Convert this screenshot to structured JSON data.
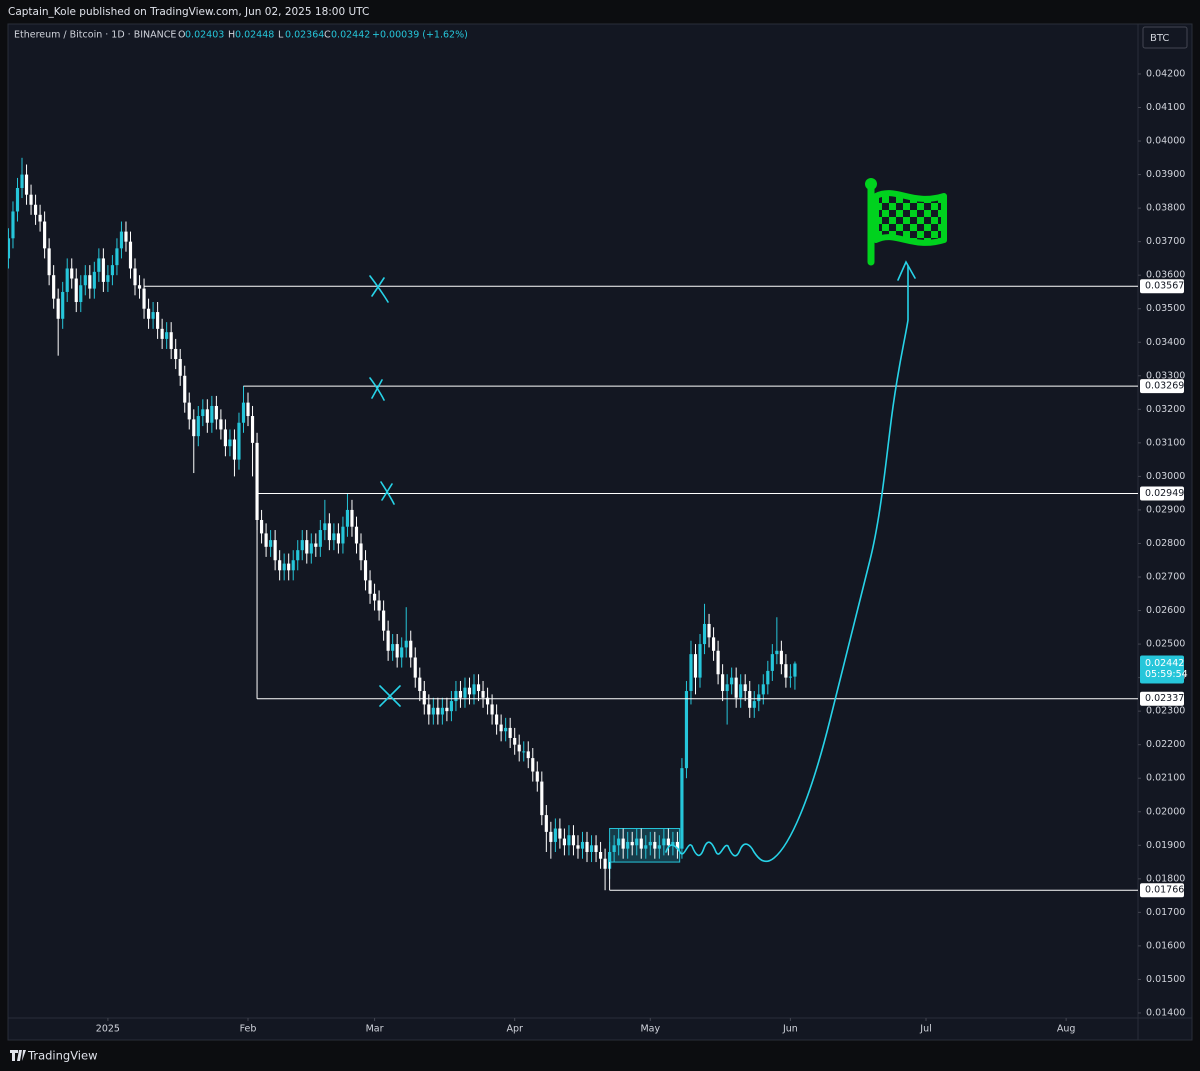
{
  "header": {
    "publisher": "Captain_Kole published on TradingView.com, Jun 02, 2025 18:00 UTC",
    "logo": "TradingView"
  },
  "chart_data": {
    "type": "candlestick",
    "title": "Ethereum / Bitcoin · 1D · BINANCE",
    "ohlc_labels": [
      "O",
      "H",
      "L",
      "C"
    ],
    "change": "+0.00039 (+1.62%)",
    "currency": "BTC",
    "countdown": "05:59:54",
    "up_color": "#26c6da",
    "down_color": "#ffffff",
    "level_color": "#ffffff",
    "box_color": "#26c6da",
    "grid": false,
    "xlim": [
      -22.1,
      227.9
    ],
    "xticks": [
      {
        "value": 0,
        "label": "2025"
      },
      {
        "value": 31,
        "label": "Feb"
      },
      {
        "value": 59,
        "label": "Mar"
      },
      {
        "value": 90,
        "label": "Apr"
      },
      {
        "value": 120,
        "label": "May"
      },
      {
        "value": 151,
        "label": "Jun"
      },
      {
        "value": 181,
        "label": "Jul"
      },
      {
        "value": 212,
        "label": "Aug"
      }
    ],
    "ylim": [
      0.01385,
      0.04349
    ],
    "yticks": [
      {
        "value": 0.014,
        "label": "0.01400"
      },
      {
        "value": 0.015,
        "label": "0.01500"
      },
      {
        "value": 0.016,
        "label": "0.01600"
      },
      {
        "value": 0.017,
        "label": "0.01700"
      },
      {
        "value": 0.018,
        "label": "0.01800"
      },
      {
        "value": 0.019,
        "label": "0.01900"
      },
      {
        "value": 0.02,
        "label": "0.02000"
      },
      {
        "value": 0.021,
        "label": "0.02100"
      },
      {
        "value": 0.022,
        "label": "0.02200"
      },
      {
        "value": 0.023,
        "label": "0.02300"
      },
      {
        "value": 0.024,
        "label": "0.02400"
      },
      {
        "value": 0.025,
        "label": "0.02500"
      },
      {
        "value": 0.026,
        "label": "0.02600"
      },
      {
        "value": 0.027,
        "label": "0.02700"
      },
      {
        "value": 0.028,
        "label": "0.02800"
      },
      {
        "value": 0.029,
        "label": "0.02900"
      },
      {
        "value": 0.03,
        "label": "0.03000"
      },
      {
        "value": 0.031,
        "label": "0.03100"
      },
      {
        "value": 0.032,
        "label": "0.03200"
      },
      {
        "value": 0.033,
        "label": "0.03300"
      },
      {
        "value": 0.034,
        "label": "0.03400"
      },
      {
        "value": 0.035,
        "label": "0.03500"
      },
      {
        "value": 0.036,
        "label": "0.03600"
      },
      {
        "value": 0.037,
        "label": "0.03700"
      },
      {
        "value": 0.038,
        "label": "0.03800"
      },
      {
        "value": 0.039,
        "label": "0.03900"
      },
      {
        "value": 0.04,
        "label": "0.04000"
      },
      {
        "value": 0.041,
        "label": "0.04100"
      },
      {
        "value": 0.042,
        "label": "0.04200"
      }
    ],
    "levels": {
      "values": [
        0.03567,
        0.03269,
        0.02949,
        0.02337,
        0.01766
      ],
      "x": [
        8,
        30,
        33,
        33,
        111
      ]
    },
    "range_box": {
      "x": [
        111,
        126.5
      ],
      "y": [
        0.0185,
        0.0195
      ]
    },
    "x": [
      -22,
      -21,
      -20,
      -19,
      -18,
      -17,
      -16,
      -15,
      -14,
      -13,
      -12,
      -11,
      -10,
      -9,
      -8,
      -7,
      -6,
      -5,
      -4,
      -3,
      -2,
      -1,
      0,
      1,
      2,
      3,
      4,
      5,
      6,
      7,
      8,
      9,
      10,
      11,
      12,
      13,
      14,
      15,
      16,
      17,
      18,
      19,
      20,
      21,
      22,
      23,
      24,
      25,
      26,
      27,
      28,
      29,
      30,
      31,
      32,
      33,
      34,
      35,
      36,
      37,
      38,
      39,
      40,
      41,
      42,
      43,
      44,
      45,
      46,
      47,
      48,
      49,
      50,
      51,
      52,
      53,
      54,
      55,
      56,
      57,
      58,
      59,
      60,
      61,
      62,
      63,
      64,
      65,
      66,
      67,
      68,
      69,
      70,
      71,
      72,
      73,
      74,
      75,
      76,
      77,
      78,
      79,
      80,
      81,
      82,
      83,
      84,
      85,
      86,
      87,
      88,
      89,
      90,
      91,
      92,
      93,
      94,
      95,
      96,
      97,
      98,
      99,
      100,
      101,
      102,
      103,
      104,
      105,
      106,
      107,
      108,
      109,
      110,
      111,
      112,
      113,
      114,
      115,
      116,
      117,
      118,
      119,
      120,
      121,
      122,
      123,
      124,
      125,
      126,
      127,
      128,
      129,
      130,
      131,
      132,
      133,
      134,
      135,
      136,
      137,
      138,
      139,
      140,
      141,
      142,
      143,
      144,
      145,
      146,
      147,
      148,
      149,
      150,
      151,
      152
    ],
    "open": [
      0.0365,
      0.0371,
      0.0379,
      0.0386,
      0.039,
      0.0384,
      0.0381,
      0.0378,
      0.0376,
      0.0368,
      0.036,
      0.0353,
      0.0347,
      0.0355,
      0.0362,
      0.0359,
      0.0352,
      0.0357,
      0.036,
      0.0356,
      0.0361,
      0.0365,
      0.0358,
      0.036,
      0.0363,
      0.0368,
      0.0373,
      0.037,
      0.0362,
      0.0357,
      0.0356,
      0.035,
      0.0347,
      0.0349,
      0.0344,
      0.0341,
      0.0343,
      0.0338,
      0.0335,
      0.033,
      0.0322,
      0.0317,
      0.0312,
      0.0318,
      0.032,
      0.0316,
      0.0321,
      0.0317,
      0.0314,
      0.0309,
      0.0311,
      0.0305,
      0.0316,
      0.0322,
      0.0318,
      0.031,
      0.0287,
      0.0283,
      0.0279,
      0.0281,
      0.0275,
      0.0272,
      0.0274,
      0.0272,
      0.0275,
      0.0278,
      0.0281,
      0.0277,
      0.028,
      0.0279,
      0.0284,
      0.0286,
      0.0281,
      0.0283,
      0.028,
      0.0285,
      0.029,
      0.0285,
      0.028,
      0.0275,
      0.0269,
      0.0265,
      0.0263,
      0.026,
      0.0254,
      0.0248,
      0.025,
      0.0246,
      0.0249,
      0.0251,
      0.0246,
      0.024,
      0.0236,
      0.0232,
      0.0229,
      0.0231,
      0.0229,
      0.0231,
      0.023,
      0.0233,
      0.0236,
      0.0234,
      0.0237,
      0.0235,
      0.0238,
      0.0236,
      0.0234,
      0.0232,
      0.0229,
      0.0226,
      0.0224,
      0.0225,
      0.0222,
      0.022,
      0.0218,
      0.0218,
      0.0216,
      0.0212,
      0.0209,
      0.0199,
      0.0194,
      0.0191,
      0.0195,
      0.0192,
      0.019,
      0.0193,
      0.019,
      0.0189,
      0.0191,
      0.0188,
      0.019,
      0.0188,
      0.0186,
      0.0183,
      0.0188,
      0.019,
      0.0192,
      0.0189,
      0.0191,
      0.019,
      0.0192,
      0.0189,
      0.019,
      0.0191,
      0.0189,
      0.019,
      0.0192,
      0.019,
      0.0191,
      0.0189,
      0.0213,
      0.0236,
      0.0247,
      0.024,
      0.025,
      0.0256,
      0.0252,
      0.0248,
      0.0241,
      0.0236,
      0.0238,
      0.024,
      0.0234,
      0.0238,
      0.0236,
      0.0231,
      0.0233,
      0.0235,
      0.0238,
      0.0242,
      0.0247,
      0.0248,
      0.0244,
      0.024,
      0.02403
    ],
    "high": [
      0.0374,
      0.0382,
      0.0389,
      0.0395,
      0.0393,
      0.0387,
      0.0384,
      0.0381,
      0.0379,
      0.0371,
      0.0363,
      0.0356,
      0.0358,
      0.0365,
      0.0365,
      0.0362,
      0.036,
      0.0363,
      0.0363,
      0.0364,
      0.0368,
      0.0368,
      0.0363,
      0.0366,
      0.0371,
      0.0376,
      0.0376,
      0.0373,
      0.0365,
      0.036,
      0.0359,
      0.0353,
      0.0352,
      0.0352,
      0.0347,
      0.0346,
      0.0346,
      0.0341,
      0.0338,
      0.0333,
      0.0325,
      0.032,
      0.0321,
      0.0323,
      0.0323,
      0.0324,
      0.0324,
      0.032,
      0.0317,
      0.0314,
      0.0314,
      0.0319,
      0.0327,
      0.0325,
      0.0321,
      0.0313,
      0.029,
      0.0286,
      0.0284,
      0.0284,
      0.0278,
      0.0277,
      0.0277,
      0.0278,
      0.0281,
      0.0284,
      0.0284,
      0.0283,
      0.0283,
      0.0287,
      0.0293,
      0.0289,
      0.0286,
      0.0286,
      0.0288,
      0.0295,
      0.0293,
      0.0288,
      0.0283,
      0.0278,
      0.0272,
      0.0268,
      0.0266,
      0.0263,
      0.0257,
      0.0253,
      0.0253,
      0.0252,
      0.0261,
      0.0254,
      0.0249,
      0.0243,
      0.0239,
      0.0235,
      0.0234,
      0.0234,
      0.0234,
      0.0234,
      0.0236,
      0.0239,
      0.0239,
      0.024,
      0.024,
      0.0241,
      0.0241,
      0.0239,
      0.0237,
      0.0235,
      0.0232,
      0.0229,
      0.0228,
      0.0228,
      0.0225,
      0.0223,
      0.0221,
      0.0221,
      0.0219,
      0.0215,
      0.0212,
      0.0202,
      0.0197,
      0.0198,
      0.0198,
      0.0195,
      0.0196,
      0.0196,
      0.0193,
      0.0194,
      0.0194,
      0.0193,
      0.0193,
      0.0191,
      0.0189,
      0.0191,
      0.0193,
      0.0195,
      0.0195,
      0.0194,
      0.0194,
      0.0195,
      0.0195,
      0.0193,
      0.0194,
      0.0194,
      0.0193,
      0.0195,
      0.0195,
      0.0194,
      0.0194,
      0.0216,
      0.0239,
      0.0251,
      0.025,
      0.0253,
      0.0262,
      0.0259,
      0.0255,
      0.0251,
      0.0244,
      0.0241,
      0.0243,
      0.0243,
      0.0241,
      0.0241,
      0.0239,
      0.0236,
      0.0238,
      0.0241,
      0.0245,
      0.025,
      0.0258,
      0.0251,
      0.0247,
      0.0244,
      0.02448
    ],
    "low": [
      0.0362,
      0.0368,
      0.0376,
      0.0383,
      0.0381,
      0.0378,
      0.0375,
      0.0373,
      0.0365,
      0.0357,
      0.035,
      0.0336,
      0.0344,
      0.0352,
      0.0356,
      0.0349,
      0.0349,
      0.0354,
      0.0353,
      0.0353,
      0.0358,
      0.0355,
      0.0355,
      0.0357,
      0.036,
      0.0365,
      0.0367,
      0.0359,
      0.0354,
      0.0353,
      0.0347,
      0.0344,
      0.0344,
      0.0341,
      0.0338,
      0.0338,
      0.0335,
      0.0332,
      0.0327,
      0.0319,
      0.0314,
      0.0301,
      0.0309,
      0.0315,
      0.0313,
      0.0313,
      0.0314,
      0.0311,
      0.0306,
      0.0306,
      0.03,
      0.0302,
      0.0313,
      0.0315,
      0.03,
      0.0284,
      0.028,
      0.0276,
      0.0276,
      0.0272,
      0.0269,
      0.0269,
      0.0269,
      0.0269,
      0.0272,
      0.0275,
      0.0274,
      0.0274,
      0.0276,
      0.0276,
      0.0281,
      0.0278,
      0.0278,
      0.0277,
      0.0277,
      0.0282,
      0.0282,
      0.0277,
      0.0272,
      0.0266,
      0.0262,
      0.026,
      0.0257,
      0.0251,
      0.0245,
      0.0245,
      0.0243,
      0.0243,
      0.0246,
      0.0243,
      0.0237,
      0.0233,
      0.0229,
      0.0226,
      0.0226,
      0.0226,
      0.0226,
      0.0227,
      0.0227,
      0.023,
      0.0231,
      0.0231,
      0.0232,
      0.0232,
      0.0233,
      0.0231,
      0.0229,
      0.0226,
      0.0223,
      0.0221,
      0.0221,
      0.0219,
      0.0217,
      0.0215,
      0.0215,
      0.0213,
      0.0209,
      0.0206,
      0.0196,
      0.0188,
      0.0186,
      0.0188,
      0.0189,
      0.0187,
      0.0187,
      0.0187,
      0.0186,
      0.0186,
      0.0185,
      0.0185,
      0.0185,
      0.0183,
      0.01766,
      0.018,
      0.0185,
      0.0187,
      0.0186,
      0.0186,
      0.0187,
      0.0187,
      0.0186,
      0.0186,
      0.0187,
      0.0186,
      0.0186,
      0.0187,
      0.0187,
      0.0187,
      0.0186,
      0.0186,
      0.021,
      0.0232,
      0.0235,
      0.0237,
      0.0247,
      0.0249,
      0.0245,
      0.0238,
      0.0233,
      0.0226,
      0.0235,
      0.0231,
      0.0231,
      0.0233,
      0.0228,
      0.0228,
      0.023,
      0.0232,
      0.0235,
      0.0239,
      0.0244,
      0.0241,
      0.0237,
      0.0237,
      0.02364
    ],
    "close": [
      0.0371,
      0.0379,
      0.0386,
      0.039,
      0.0384,
      0.0381,
      0.0378,
      0.0376,
      0.0368,
      0.036,
      0.0353,
      0.0347,
      0.0355,
      0.0362,
      0.0359,
      0.0352,
      0.0357,
      0.036,
      0.0356,
      0.0361,
      0.0365,
      0.0358,
      0.036,
      0.0363,
      0.0368,
      0.0373,
      0.037,
      0.0362,
      0.0357,
      0.0356,
      0.035,
      0.0347,
      0.0349,
      0.0344,
      0.0341,
      0.0343,
      0.0338,
      0.0335,
      0.033,
      0.0322,
      0.0317,
      0.0312,
      0.0318,
      0.032,
      0.0316,
      0.0321,
      0.0317,
      0.0314,
      0.0309,
      0.0311,
      0.0305,
      0.0316,
      0.0322,
      0.0318,
      0.031,
      0.0287,
      0.0283,
      0.0279,
      0.0281,
      0.0275,
      0.0272,
      0.0274,
      0.0272,
      0.0275,
      0.0278,
      0.0281,
      0.0277,
      0.028,
      0.0279,
      0.0284,
      0.0286,
      0.0281,
      0.0283,
      0.028,
      0.0285,
      0.029,
      0.0285,
      0.028,
      0.0275,
      0.0269,
      0.0265,
      0.0263,
      0.026,
      0.0254,
      0.0248,
      0.025,
      0.0246,
      0.0249,
      0.0251,
      0.0246,
      0.024,
      0.0236,
      0.0232,
      0.0229,
      0.0231,
      0.0229,
      0.0231,
      0.023,
      0.0233,
      0.0236,
      0.0234,
      0.0237,
      0.0235,
      0.0238,
      0.0236,
      0.0234,
      0.0232,
      0.0229,
      0.0226,
      0.0224,
      0.0225,
      0.0222,
      0.022,
      0.0218,
      0.0218,
      0.0216,
      0.0212,
      0.0209,
      0.0199,
      0.0194,
      0.0191,
      0.0195,
      0.0192,
      0.019,
      0.0193,
      0.019,
      0.0189,
      0.0191,
      0.0188,
      0.019,
      0.0188,
      0.0186,
      0.0183,
      0.0188,
      0.019,
      0.0192,
      0.0189,
      0.0191,
      0.019,
      0.0192,
      0.0189,
      0.019,
      0.0191,
      0.0189,
      0.019,
      0.0192,
      0.019,
      0.0191,
      0.0189,
      0.0213,
      0.0236,
      0.0247,
      0.024,
      0.025,
      0.0256,
      0.0252,
      0.0248,
      0.0241,
      0.0236,
      0.0238,
      0.024,
      0.0234,
      0.0238,
      0.0236,
      0.0231,
      0.0233,
      0.0235,
      0.0238,
      0.0242,
      0.0247,
      0.0248,
      0.0244,
      0.024,
      0.02403,
      0.02442
    ]
  }
}
